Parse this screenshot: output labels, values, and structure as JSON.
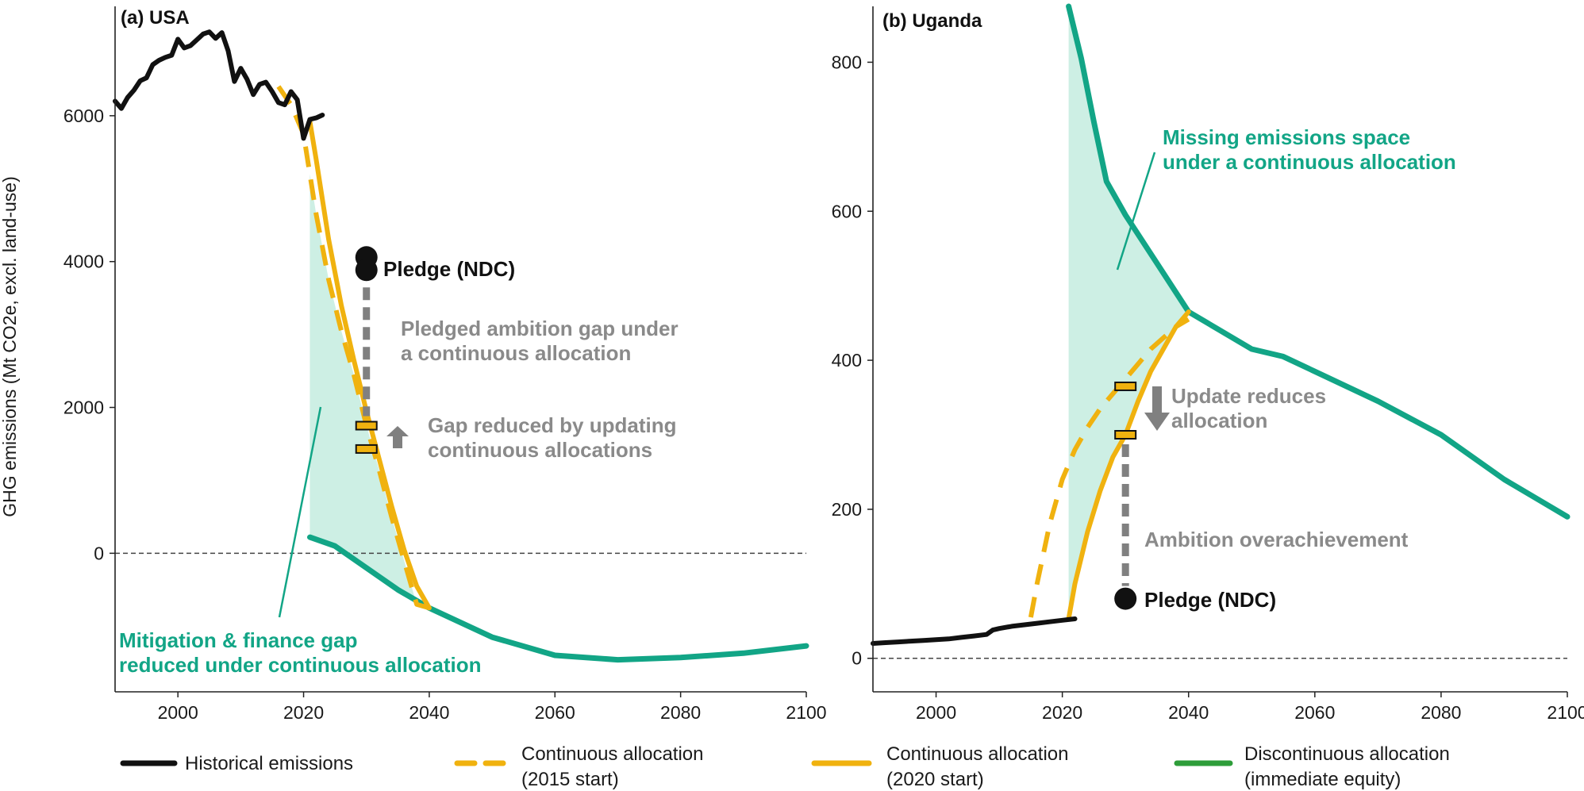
{
  "colors": {
    "historical": "#111111",
    "continuous": "#f0b20f",
    "discontinuous": "#12a586",
    "fill": "#cdefe4",
    "gap_grey": "#808080",
    "pledge": "#111111"
  },
  "chart_data": [
    {
      "id": "usa",
      "type": "line",
      "title": "(a) USA",
      "xlabel": "",
      "ylabel": "GHG emissions (Mt CO2e, excl. land-use)",
      "xlim": [
        1990,
        2100
      ],
      "ylim": [
        -1900,
        7500
      ],
      "xticks": [
        2000,
        2020,
        2040,
        2060,
        2080,
        2100
      ],
      "yticks": [
        0,
        2000,
        4000,
        6000
      ],
      "series": [
        {
          "name": "Historical emissions",
          "style": "historical",
          "x": [
            1990,
            1991,
            1992,
            1993,
            1994,
            1995,
            1996,
            1997,
            1998,
            1999,
            2000,
            2001,
            2002,
            2003,
            2004,
            2005,
            2006,
            2007,
            2008,
            2009,
            2010,
            2011,
            2012,
            2013,
            2014,
            2015,
            2016,
            2017,
            2018,
            2019,
            2020,
            2021,
            2022,
            2023
          ],
          "y": [
            6200,
            6100,
            6250,
            6350,
            6480,
            6520,
            6700,
            6760,
            6800,
            6830,
            7050,
            6930,
            6960,
            7040,
            7120,
            7150,
            7060,
            7140,
            6890,
            6470,
            6650,
            6500,
            6290,
            6430,
            6460,
            6330,
            6180,
            6150,
            6330,
            6220,
            5690,
            5950,
            5970,
            6010
          ]
        },
        {
          "name": "Continuous allocation (2015 start)",
          "style": "dashed",
          "x": [
            2016,
            2018,
            2020,
            2022,
            2024,
            2026,
            2028,
            2030,
            2032,
            2034,
            2036,
            2038,
            2040
          ],
          "y": [
            6400,
            6150,
            5750,
            4650,
            3750,
            3050,
            2450,
            1750,
            1150,
            500,
            -100,
            -700,
            -750
          ]
        },
        {
          "name": "Continuous allocation (2020 start)",
          "style": "solid",
          "x": [
            2021,
            2022,
            2024,
            2026,
            2028,
            2030,
            2032,
            2034,
            2036,
            2038,
            2040
          ],
          "y": [
            5920,
            5400,
            4300,
            3400,
            2650,
            1950,
            1300,
            650,
            50,
            -450,
            -750
          ]
        },
        {
          "name": "Discontinuous allocation (immediate equity)",
          "style": "discontinuous",
          "x": [
            2021,
            2025,
            2030,
            2035,
            2040,
            2050,
            2060,
            2070,
            2080,
            2090,
            2100
          ],
          "y": [
            220,
            100,
            -200,
            -500,
            -750,
            -1150,
            -1400,
            -1460,
            -1430,
            -1370,
            -1270
          ]
        }
      ],
      "pledge": {
        "x": 2030,
        "y": 3950,
        "label": "Pledge (NDC)"
      },
      "allocation_markers": [
        {
          "x": 2030,
          "y": 1750
        },
        {
          "x": 2030,
          "y": 1430
        }
      ],
      "annotations": {
        "gap": "Pledged ambition gap under a continuous allocation",
        "gap_line1": "Pledged ambition gap under",
        "gap_line2": "a continuous allocation",
        "update_line1": "Gap reduced by updating",
        "update_line2": "continuous allocations",
        "teal_line1": "Mitigation & finance gap",
        "teal_line2": "reduced under continuous allocation"
      }
    },
    {
      "id": "uganda",
      "type": "line",
      "title": "(b) Uganda",
      "xlabel": "",
      "ylabel": "",
      "xlim": [
        1990,
        2100
      ],
      "ylim": [
        -45,
        875
      ],
      "xticks": [
        2000,
        2020,
        2040,
        2060,
        2080,
        2100
      ],
      "yticks": [
        0,
        200,
        400,
        600,
        800
      ],
      "series": [
        {
          "name": "Historical emissions",
          "style": "historical",
          "x": [
            1990,
            1992,
            1994,
            1996,
            1998,
            2000,
            2002,
            2004,
            2006,
            2008,
            2009,
            2010,
            2012,
            2014,
            2016,
            2018,
            2020,
            2021,
            2022
          ],
          "y": [
            20,
            21,
            22,
            23,
            24,
            25,
            26,
            28,
            30,
            32,
            38,
            40,
            43,
            45,
            47,
            49,
            51,
            52,
            53
          ]
        },
        {
          "name": "Continuous allocation (2015 start)",
          "style": "dashed",
          "x": [
            2015,
            2016,
            2018,
            2020,
            2022,
            2024,
            2026,
            2028,
            2030,
            2032,
            2034,
            2036,
            2038,
            2040
          ],
          "y": [
            55,
            100,
            180,
            240,
            280,
            310,
            335,
            355,
            375,
            395,
            415,
            430,
            445,
            455
          ]
        },
        {
          "name": "Continuous allocation (2020 start)",
          "style": "solid",
          "x": [
            2021,
            2022,
            2024,
            2026,
            2028,
            2030,
            2032,
            2034,
            2036,
            2038,
            2040
          ],
          "y": [
            53,
            100,
            170,
            225,
            270,
            300,
            345,
            385,
            415,
            445,
            465
          ]
        },
        {
          "name": "Discontinuous allocation (immediate equity)",
          "style": "discontinuous",
          "x": [
            2021,
            2023,
            2025,
            2027,
            2030,
            2035,
            2040,
            2045,
            2050,
            2055,
            2060,
            2070,
            2080,
            2090,
            2100
          ],
          "y": [
            875,
            805,
            720,
            640,
            595,
            530,
            465,
            440,
            415,
            405,
            385,
            345,
            300,
            240,
            190
          ]
        }
      ],
      "pledge": {
        "x": 2030,
        "y": 80,
        "label": "Pledge (NDC)"
      },
      "allocation_markers": [
        {
          "x": 2030,
          "y": 365
        },
        {
          "x": 2030,
          "y": 300
        }
      ],
      "annotations": {
        "update_line1": "Update reduces",
        "update_line2": "allocation",
        "overachieve": "Ambition overachievement",
        "teal_line1": "Missing emissions space",
        "teal_line2": "under a continuous allocation"
      }
    }
  ],
  "legend": {
    "items": [
      {
        "label_line1": "Historical emissions",
        "label_line2": "",
        "style": "historical"
      },
      {
        "label_line1": "Continuous allocation",
        "label_line2": "(2015 start)",
        "style": "dashed"
      },
      {
        "label_line1": "Continuous allocation",
        "label_line2": "(2020 start)",
        "style": "solid"
      },
      {
        "label_line1": "Discontinuous allocation",
        "label_line2": "(immediate equity)",
        "style": "discontinuous-legend"
      }
    ]
  }
}
